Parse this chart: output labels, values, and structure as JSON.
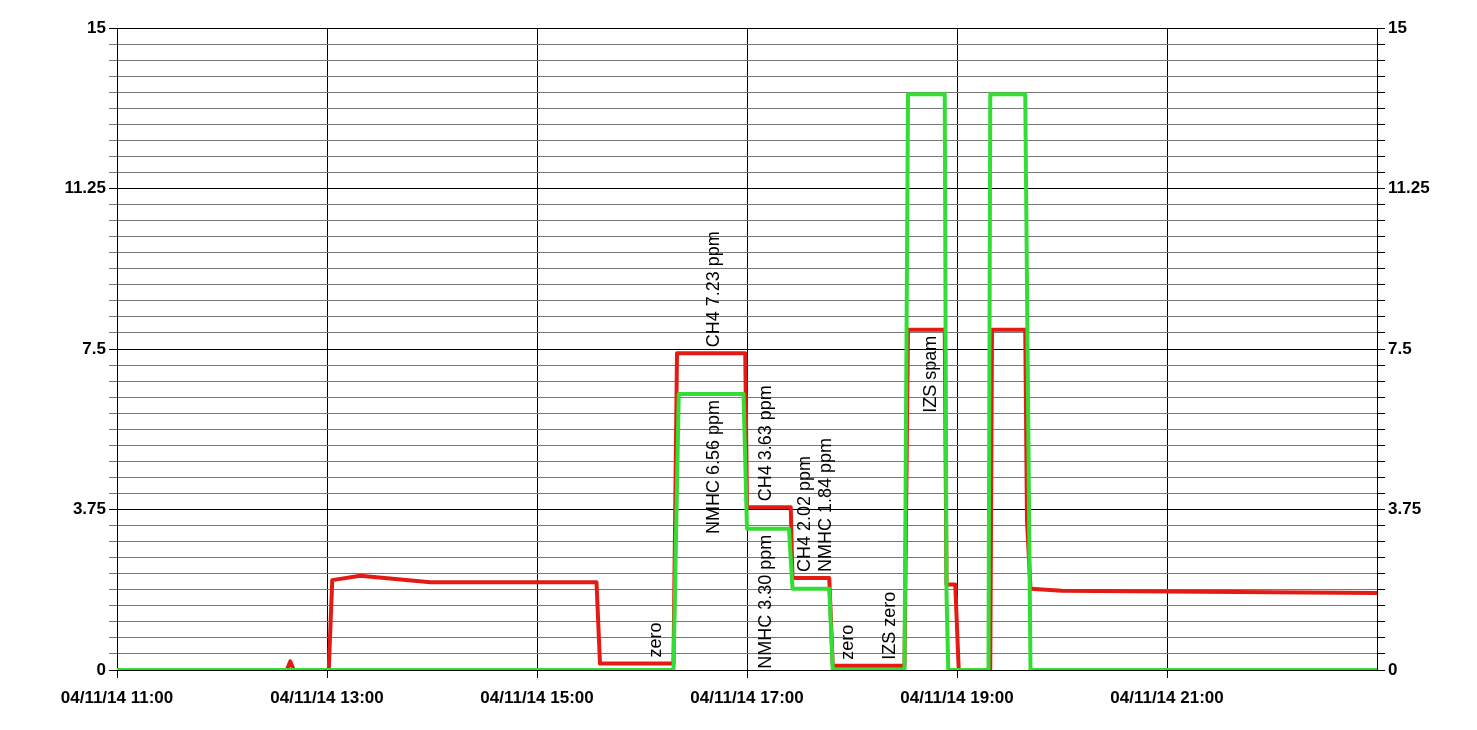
{
  "chart_data": {
    "type": "line",
    "marker": "none",
    "grid": true,
    "xlim": [
      "--04-11T11:00",
      "--04-11T23:00"
    ],
    "xticks": [
      {
        "value": "--04-11T11:00",
        "label": "04/11/14 11:00"
      },
      {
        "value": "--04-11T13:00",
        "label": "04/11/14 13:00"
      },
      {
        "value": "--04-11T15:00",
        "label": "04/11/14 15:00"
      },
      {
        "value": "--04-11T17:00",
        "label": "04/11/14 17:00"
      },
      {
        "value": "--04-11T19:00",
        "label": "04/11/14 19:00"
      },
      {
        "value": "--04-11T21:00",
        "label": "04/11/14 21:00"
      }
    ],
    "ylim": [
      0,
      15
    ],
    "yticks": [
      0,
      {
        "value": 0.375,
        "label": null
      },
      {
        "value": 0.75,
        "label": null
      },
      {
        "value": 1.125,
        "label": null
      },
      {
        "value": 1.5,
        "label": null
      },
      {
        "value": 1.875,
        "label": null
      },
      {
        "value": 2.25,
        "label": null
      },
      {
        "value": 2.625,
        "label": null
      },
      {
        "value": 3,
        "label": null
      },
      {
        "value": 3.375,
        "label": null
      },
      3.75,
      {
        "value": 4.125,
        "label": null
      },
      {
        "value": 4.5,
        "label": null
      },
      {
        "value": 4.875,
        "label": null
      },
      {
        "value": 5.25,
        "label": null
      },
      {
        "value": 5.625,
        "label": null
      },
      {
        "value": 6,
        "label": null
      },
      {
        "value": 6.375,
        "label": null
      },
      {
        "value": 6.75,
        "label": null
      },
      {
        "value": 7.125,
        "label": null
      },
      7.5,
      {
        "value": 7.875,
        "label": null
      },
      {
        "value": 8.25,
        "label": null
      },
      {
        "value": 8.625,
        "label": null
      },
      {
        "value": 9,
        "label": null
      },
      {
        "value": 9.375,
        "label": null
      },
      {
        "value": 9.75,
        "label": null
      },
      {
        "value": 10.125,
        "label": null
      },
      {
        "value": 10.5,
        "label": null
      },
      {
        "value": 10.875,
        "label": null
      },
      11.25,
      {
        "value": 11.625,
        "label": null
      },
      {
        "value": 12,
        "label": null
      },
      {
        "value": 12.375,
        "label": null
      },
      {
        "value": 12.75,
        "label": null
      },
      {
        "value": 13.125,
        "label": null
      },
      {
        "value": 13.5,
        "label": null
      },
      {
        "value": 13.875,
        "label": null
      },
      {
        "value": 14.25,
        "label": null
      },
      {
        "value": 14.625,
        "label": null
      },
      15
    ],
    "y2lim": [
      0,
      15
    ],
    "y2ticks": [
      0,
      {
        "value": 0.375,
        "label": null
      },
      {
        "value": 0.75,
        "label": null
      },
      {
        "value": 1.125,
        "label": null
      },
      {
        "value": 1.5,
        "label": null
      },
      {
        "value": 1.875,
        "label": null
      },
      {
        "value": 2.25,
        "label": null
      },
      {
        "value": 2.625,
        "label": null
      },
      {
        "value": 3,
        "label": null
      },
      {
        "value": 3.375,
        "label": null
      },
      3.75,
      {
        "value": 4.125,
        "label": null
      },
      {
        "value": 4.5,
        "label": null
      },
      {
        "value": 4.875,
        "label": null
      },
      {
        "value": 5.25,
        "label": null
      },
      {
        "value": 5.625,
        "label": null
      },
      {
        "value": 6,
        "label": null
      },
      {
        "value": 6.375,
        "label": null
      },
      {
        "value": 6.75,
        "label": null
      },
      {
        "value": 7.125,
        "label": null
      },
      7.5,
      {
        "value": 7.875,
        "label": null
      },
      {
        "value": 8.25,
        "label": null
      },
      {
        "value": 8.625,
        "label": null
      },
      {
        "value": 9,
        "label": null
      },
      {
        "value": 9.375,
        "label": null
      },
      {
        "value": 9.75,
        "label": null
      },
      {
        "value": 10.125,
        "label": null
      },
      {
        "value": 10.5,
        "label": null
      },
      {
        "value": 10.875,
        "label": null
      },
      11.25,
      {
        "value": 11.625,
        "label": null
      },
      {
        "value": 12,
        "label": null
      },
      {
        "value": 12.375,
        "label": null
      },
      {
        "value": 12.75,
        "label": null
      },
      {
        "value": 13.125,
        "label": null
      },
      {
        "value": 13.5,
        "label": null
      },
      {
        "value": 13.875,
        "label": null
      },
      {
        "value": 14.25,
        "label": null
      },
      {
        "value": 14.625,
        "label": null
      },
      15
    ],
    "series": [
      {
        "color": "#33dd33",
        "x": [
          "--04-11T11:00",
          "--04-11T16:18",
          "--04-11T16:21",
          "--04-11T16:58",
          "--04-11T17:00",
          "--04-11T17:24",
          "--04-11T17:26",
          "--04-11T17:47",
          "--04-11T17:49",
          "--04-11T18:30",
          "--04-11T18:32",
          "--04-11T18:53",
          "--04-11T18:54",
          "--04-11T18:55",
          "--04-11T19:18",
          "--04-11T19:19",
          "--04-11T19:39",
          "--04-11T19:42",
          "--04-11T23:00"
        ],
        "values": [
          0,
          0,
          6.45,
          6.45,
          3.3,
          3.3,
          1.9,
          1.9,
          0,
          0,
          13.45,
          13.45,
          1.8,
          0,
          0,
          13.45,
          13.45,
          0,
          0
        ]
      },
      {
        "color": "#e41b13",
        "x": [
          "--04-11T11:00",
          "--04-11T12:37",
          "--04-11T12:39",
          "--04-11T12:41",
          "--04-11T13:01",
          "--04-11T13:03",
          "--04-11T13:19",
          "--04-11T13:59",
          "--04-11T15:34",
          "--04-11T15:36",
          "--04-11T16:18",
          "--04-11T16:20",
          "--04-11T16:59",
          "--04-11T17:00",
          "--04-11T17:25",
          "--04-11T17:26",
          "--04-11T17:47",
          "--04-11T17:49",
          "--04-11T18:30",
          "--04-11T18:32",
          "--04-11T18:53",
          "--04-11T18:54",
          "--04-11T18:59",
          "--04-11T19:01",
          "--04-11T19:19",
          "--04-11T19:20",
          "--04-11T19:39",
          "--04-11T19:40",
          "--04-11T19:42",
          "--04-11T20:00",
          "--04-11T23:00"
        ],
        "values": [
          0,
          0,
          0.2,
          0,
          0,
          2.1,
          2.2,
          2.05,
          2.05,
          0.15,
          0.15,
          7.4,
          7.4,
          3.8,
          3.8,
          2.15,
          2.15,
          0.1,
          0.1,
          7.95,
          7.95,
          2.0,
          2.0,
          0,
          0,
          7.95,
          7.95,
          3.5,
          1.9,
          1.85,
          1.8
        ]
      }
    ],
    "annotations": [
      {
        "text": "zero",
        "x": "--04-11T16:08",
        "y": 0.15
      },
      {
        "text": "NMHC 6.56 ppm",
        "x": "--04-11T16:41",
        "y": 6.45
      },
      {
        "text": "CH4 7.23 ppm",
        "x": "--04-11T16:41",
        "y": 7.4
      },
      {
        "text": "NMHC 3.30 ppm",
        "x": "--04-11T17:11",
        "y": 3.3
      },
      {
        "text": "CH4 3.63 ppm",
        "x": "--04-11T17:11",
        "y": 3.8
      },
      {
        "text": "CH4 2.02 ppm",
        "x": "--04-11T17:33",
        "y": 2.15
      },
      {
        "text": "NMHC 1.84 ppm",
        "x": "--04-11T17:45",
        "y": 2.15
      },
      {
        "text": "zero",
        "x": "--04-11T17:58",
        "y": 0.1
      },
      {
        "text": "IZS zero",
        "x": "--04-11T18:22",
        "y": 0.1
      },
      {
        "text": "IZS spam",
        "x": "--04-11T18:45",
        "y": 7.95
      }
    ]
  }
}
